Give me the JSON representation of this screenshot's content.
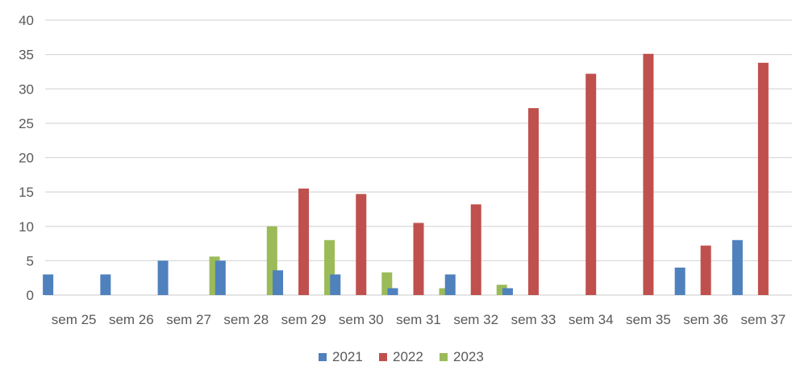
{
  "chart_data": {
    "type": "bar",
    "title": "",
    "xlabel": "",
    "ylabel": "",
    "ylim": [
      0,
      40
    ],
    "yticks": [
      0,
      5,
      10,
      15,
      20,
      25,
      30,
      35,
      40
    ],
    "grid": true,
    "legend_position": "bottom",
    "categories": [
      "sem 25",
      "sem 26",
      "sem 27",
      "sem 28",
      "sem 29",
      "sem 30",
      "sem 31",
      "sem 32",
      "sem 33",
      "sem 34",
      "sem 35",
      "sem 36",
      "sem 37"
    ],
    "series": [
      {
        "name": "2021",
        "color": "#4F81BD",
        "values": [
          3,
          3,
          5,
          5,
          3.6,
          3,
          1,
          3,
          1,
          0,
          0,
          4,
          8
        ]
      },
      {
        "name": "2022",
        "color": "#C0504D",
        "values": [
          0,
          0,
          0,
          0,
          15.5,
          14.7,
          10.5,
          13.2,
          27.2,
          32.2,
          35.1,
          7.2,
          33.8
        ]
      },
      {
        "name": "2023",
        "color": "#9BBB59",
        "values": [
          0,
          0,
          5.6,
          10,
          8,
          3.3,
          1,
          1.5,
          0,
          0,
          0,
          0,
          0
        ]
      }
    ]
  }
}
